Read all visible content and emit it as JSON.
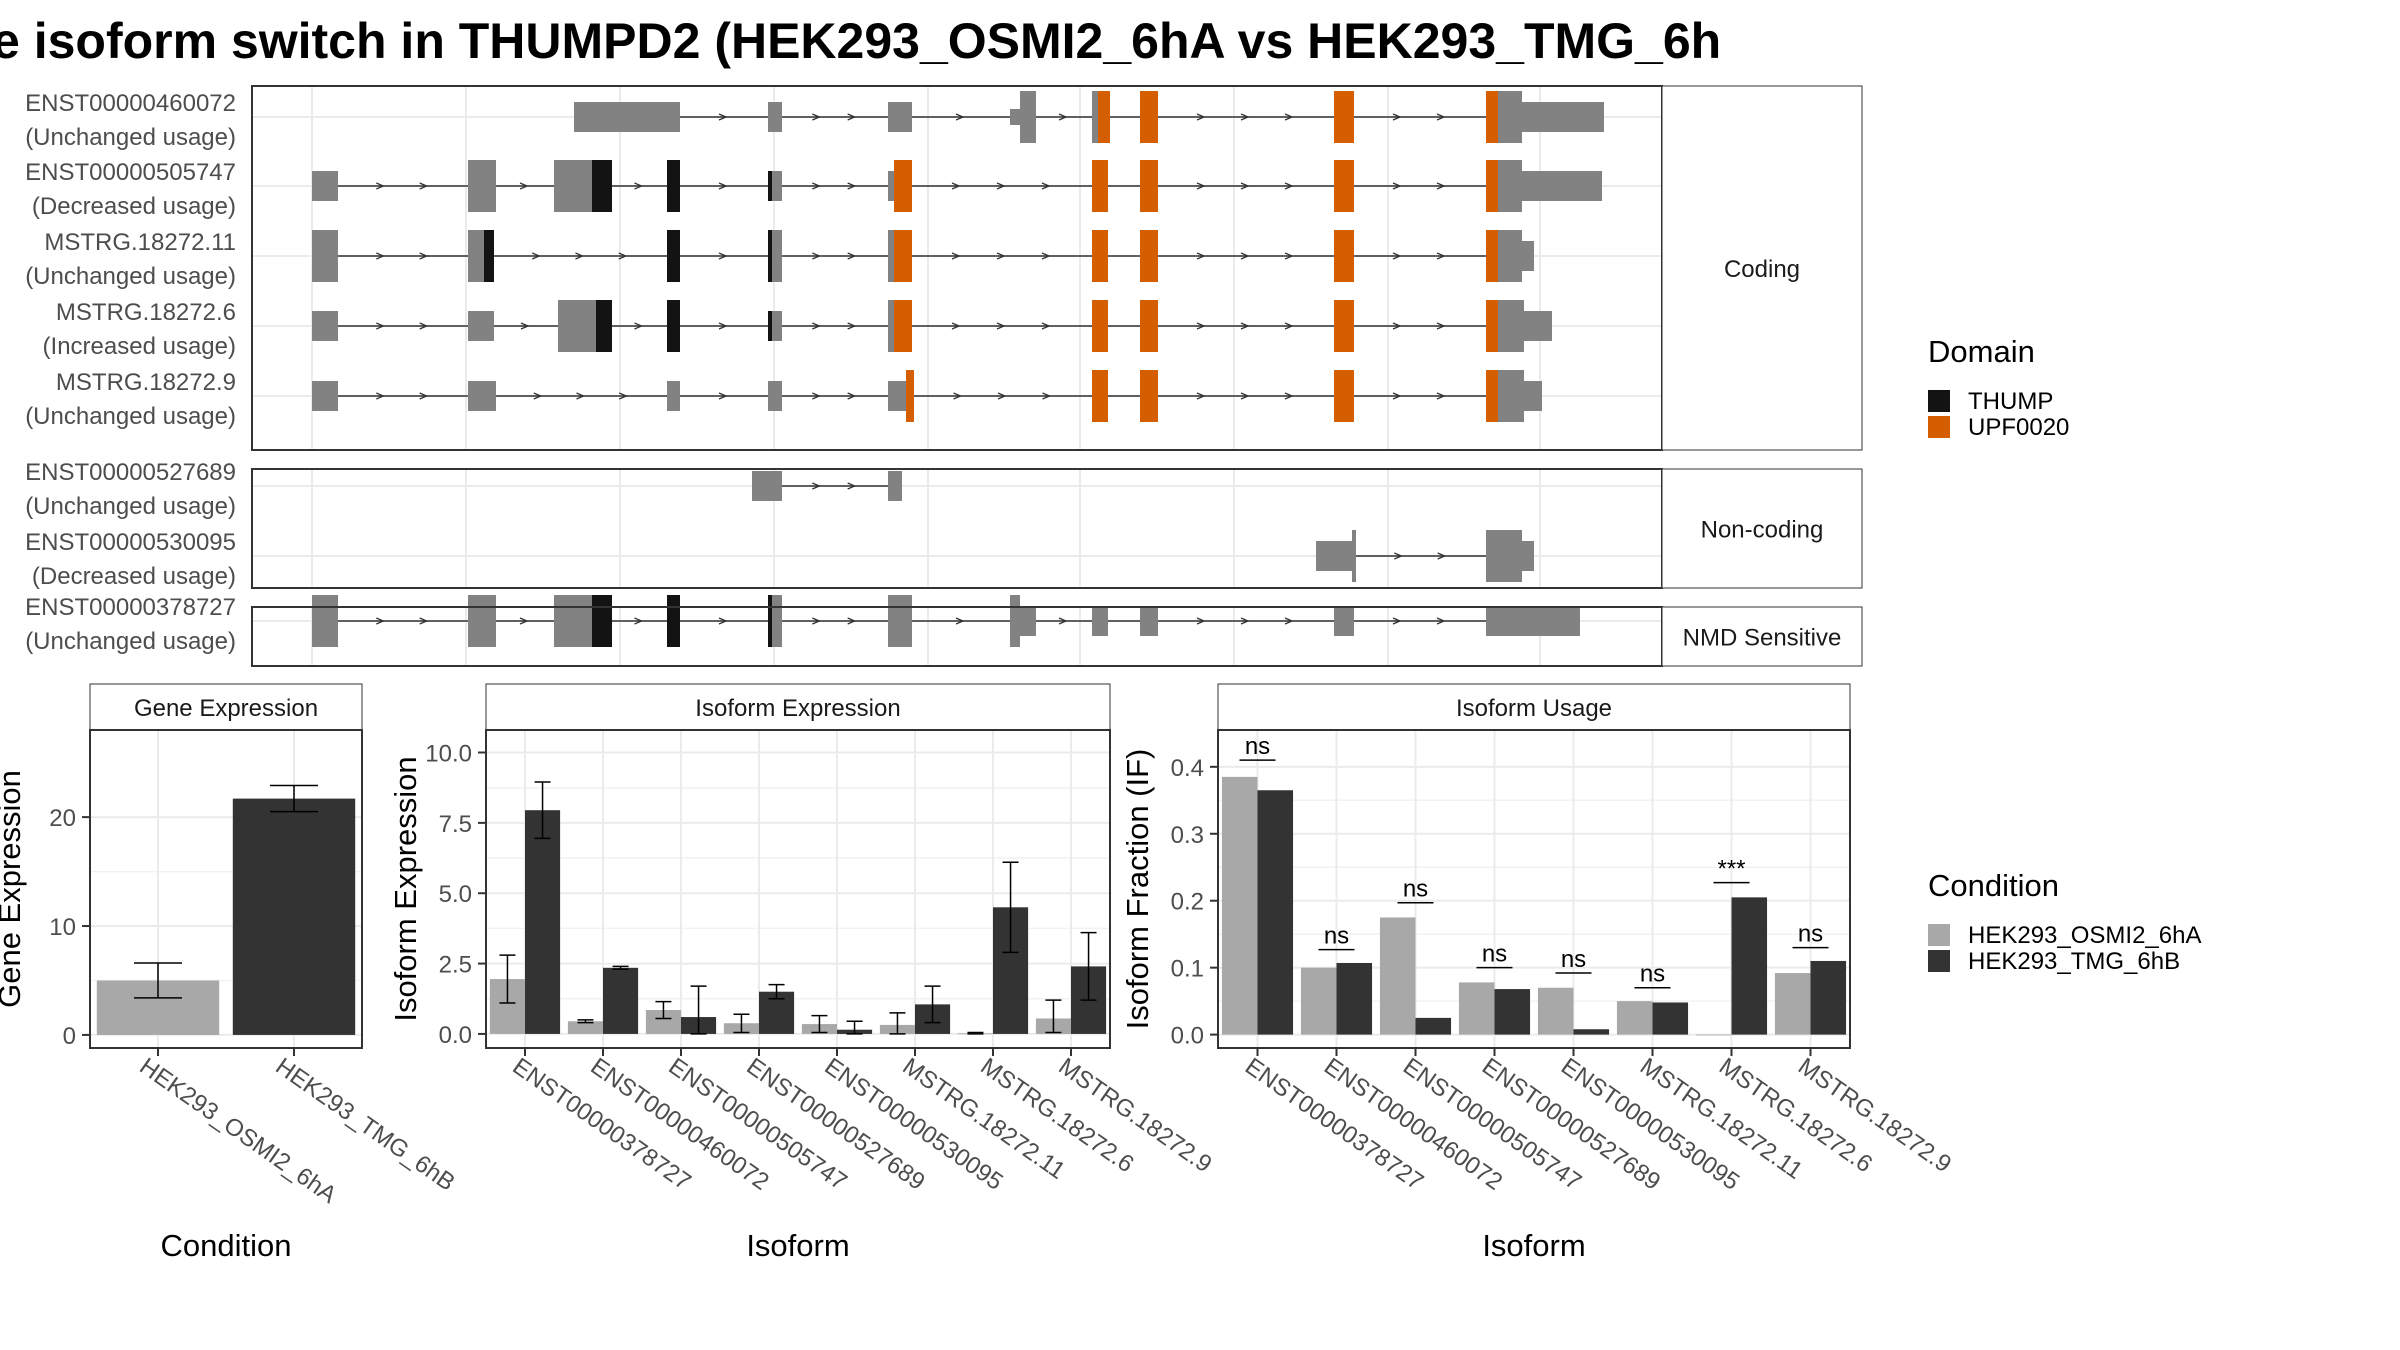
{
  "title": "e isoform switch in THUMPD2 (HEK293_OSMI2_6hA vs HEK293_TMG_6h",
  "colors": {
    "exon": "#828282",
    "thump": "#131313",
    "upf0020": "#d55e00",
    "cond1": "#a8a8a8",
    "cond2": "#333333"
  },
  "structure": {
    "panels": [
      {
        "label": "Coding",
        "isoforms": [
          {
            "id": "ENST00000460072",
            "usage": "(Unchanged usage)"
          },
          {
            "id": "ENST00000505747",
            "usage": "(Decreased usage)"
          },
          {
            "id": "MSTRG.18272.11",
            "usage": "(Unchanged usage)"
          },
          {
            "id": "MSTRG.18272.6",
            "usage": "(Increased usage)"
          },
          {
            "id": "MSTRG.18272.9",
            "usage": "(Unchanged usage)"
          }
        ]
      },
      {
        "label": "Non-coding",
        "isoforms": [
          {
            "id": "ENST00000527689",
            "usage": "(Unchanged usage)"
          },
          {
            "id": "ENST00000530095",
            "usage": "(Decreased usage)"
          }
        ]
      },
      {
        "label": "NMD Sensitive",
        "isoforms": [
          {
            "id": "ENST00000378727",
            "usage": "(Unchanged usage)"
          }
        ]
      }
    ]
  },
  "legend_domain": {
    "title": "Domain",
    "items": [
      {
        "label": "THUMP",
        "color": "#131313"
      },
      {
        "label": "UPF0020",
        "color": "#d55e00"
      }
    ]
  },
  "legend_condition": {
    "title": "Condition",
    "items": [
      {
        "label": "HEK293_OSMI2_6hA",
        "color": "#a8a8a8"
      },
      {
        "label": "HEK293_TMG_6hB",
        "color": "#333333"
      }
    ]
  },
  "chart_data": [
    {
      "type": "bar",
      "title": "Gene Expression",
      "xlabel": "Condition",
      "ylabel": "Gene Expression",
      "categories": [
        "HEK293_OSMI2_6hA",
        "HEK293_TMG_6hB"
      ],
      "values": [
        5.0,
        21.7
      ],
      "error_low": [
        3.4,
        20.5
      ],
      "error_high": [
        6.6,
        22.9
      ],
      "ylim": [
        -1.2,
        28
      ],
      "yticks": [
        0,
        10,
        20
      ],
      "grid": true
    },
    {
      "type": "bar",
      "title": "Isoform Expression",
      "xlabel": "Isoform",
      "ylabel": "Isoform Expression",
      "categories": [
        "ENST00000378727",
        "ENST00000460072",
        "ENST00000505747",
        "ENST00000527689",
        "ENST00000530095",
        "MSTRG.18272.11",
        "MSTRG.18272.6",
        "MSTRG.18272.9"
      ],
      "series": [
        {
          "name": "HEK293_OSMI2_6hA",
          "values": [
            1.95,
            0.45,
            0.85,
            0.38,
            0.35,
            0.32,
            0.02,
            0.55
          ],
          "error_low": [
            1.1,
            0.4,
            0.55,
            0.05,
            0.05,
            0.0,
            0.0,
            0.05
          ],
          "error_high": [
            2.8,
            0.5,
            1.15,
            0.7,
            0.65,
            0.75,
            0.05,
            1.2
          ]
        },
        {
          "name": "HEK293_TMG_6hB",
          "values": [
            7.95,
            2.35,
            0.6,
            1.5,
            0.15,
            1.05,
            4.5,
            2.4
          ],
          "error_low": [
            6.95,
            2.3,
            0.0,
            1.25,
            0.0,
            0.4,
            2.9,
            1.2
          ],
          "error_high": [
            8.95,
            2.4,
            1.7,
            1.75,
            0.45,
            1.7,
            6.1,
            3.6
          ]
        }
      ],
      "ylim": [
        -0.5,
        10.8
      ],
      "yticks": [
        0.0,
        2.5,
        5.0,
        7.5,
        10.0
      ],
      "ytick_labels": [
        "0.0",
        "2.5",
        "5.0",
        "7.5",
        "10.0"
      ],
      "grid": true
    },
    {
      "type": "bar",
      "title": "Isoform Usage",
      "xlabel": "Isoform",
      "ylabel": "Isoform Fraction (IF)",
      "categories": [
        "ENST00000378727",
        "ENST00000460072",
        "ENST00000505747",
        "ENST00000527689",
        "ENST00000530095",
        "MSTRG.18272.11",
        "MSTRG.18272.6",
        "MSTRG.18272.9"
      ],
      "series": [
        {
          "name": "HEK293_OSMI2_6hA",
          "values": [
            0.385,
            0.1,
            0.175,
            0.078,
            0.07,
            0.05,
            0.0,
            0.092
          ]
        },
        {
          "name": "HEK293_TMG_6hB",
          "values": [
            0.365,
            0.107,
            0.025,
            0.068,
            0.008,
            0.048,
            0.205,
            0.11
          ]
        }
      ],
      "annotations": [
        "ns",
        "ns",
        "ns",
        "ns",
        "ns",
        "ns",
        "***",
        "ns"
      ],
      "annotation_y": [
        0.41,
        0.127,
        0.197,
        0.1,
        0.092,
        0.07,
        0.227,
        0.13
      ],
      "ylim": [
        -0.02,
        0.455
      ],
      "yticks": [
        0.0,
        0.1,
        0.2,
        0.3,
        0.4
      ],
      "ytick_labels": [
        "0.0",
        "0.1",
        "0.2",
        "0.3",
        "0.4"
      ],
      "grid": true
    }
  ]
}
